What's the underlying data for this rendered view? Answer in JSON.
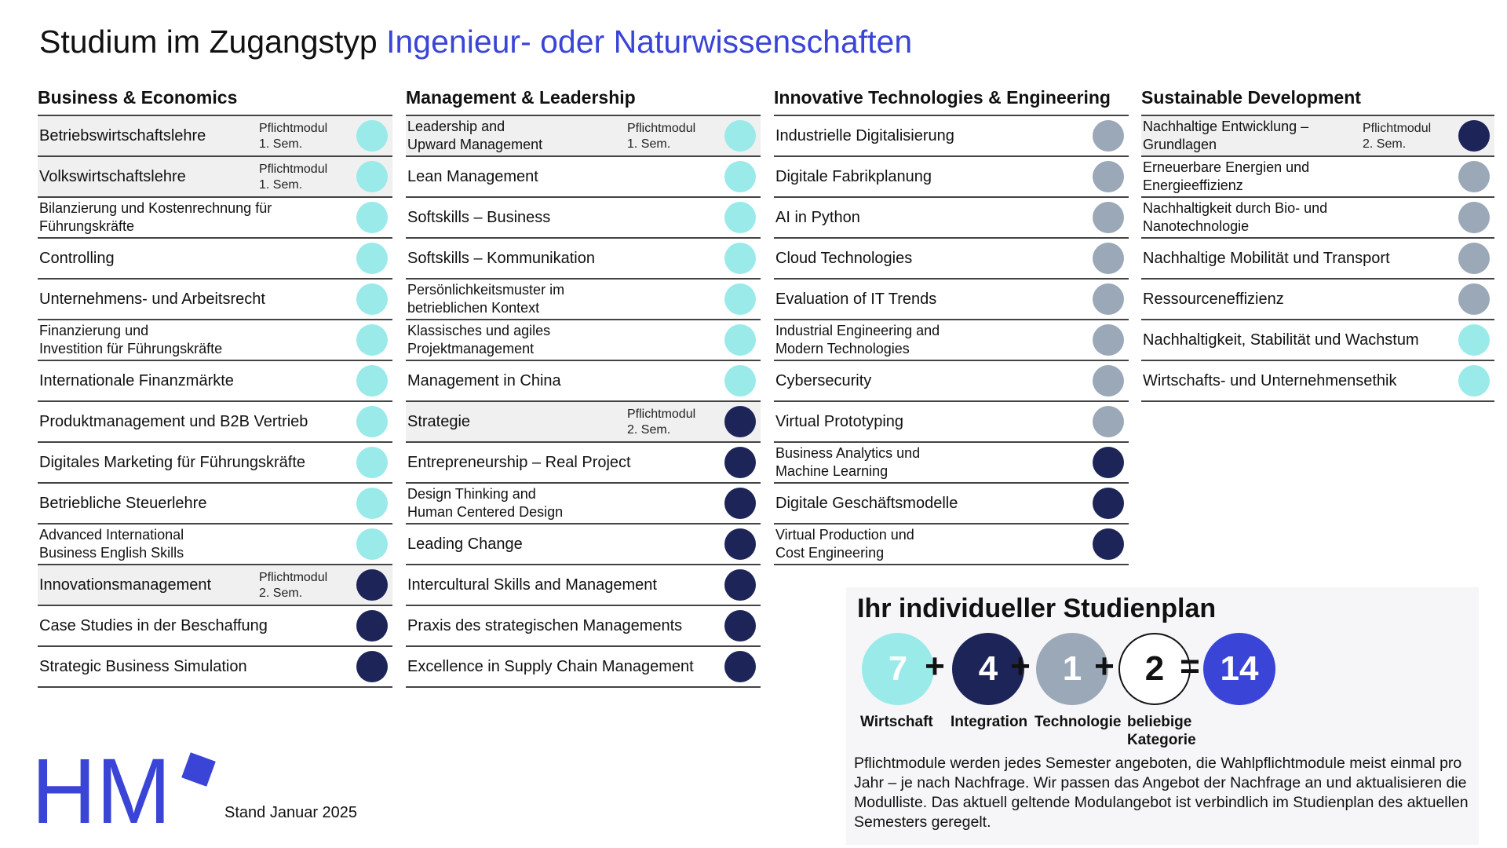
{
  "title": {
    "main": "Studium im Zugangstyp",
    "accent": "Ingenieur- oder Naturwissenschaften"
  },
  "colors": {
    "accent": "#3a44d6",
    "wirtschaft": "#9aeaea",
    "integration": "#1d2558",
    "technologie": "#9aa8b8",
    "required_row_bg": "#f0f0f0"
  },
  "columns": [
    {
      "heading": "Business & Economics",
      "rows": [
        {
          "name": "Betriebswirtschaftslehre",
          "required": "Pflichtmodul\n1. Sem.",
          "category": "wirtschaft"
        },
        {
          "name": "Volkswirtschaftslehre",
          "required": "Pflichtmodul\n1. Sem.",
          "category": "wirtschaft"
        },
        {
          "name": "Bilanzierung und Kostenrechnung für\nFührungskräfte",
          "required": "",
          "category": "wirtschaft"
        },
        {
          "name": "Controlling",
          "required": "",
          "category": "wirtschaft"
        },
        {
          "name": "Unternehmens- und Arbeitsrecht",
          "required": "",
          "category": "wirtschaft"
        },
        {
          "name": "Finanzierung und\nInvestition für Führungskräfte",
          "required": "",
          "category": "wirtschaft"
        },
        {
          "name": "Internationale Finanzmärkte",
          "required": "",
          "category": "wirtschaft"
        },
        {
          "name": "Produktmanagement und B2B Vertrieb",
          "required": "",
          "category": "wirtschaft"
        },
        {
          "name": "Digitales Marketing für Führungskräfte",
          "required": "",
          "category": "wirtschaft"
        },
        {
          "name": "Betriebliche Steuerlehre",
          "required": "",
          "category": "wirtschaft"
        },
        {
          "name": "Advanced International\nBusiness English Skills",
          "required": "",
          "category": "wirtschaft"
        },
        {
          "name": "Innovationsmanagement",
          "required": "Pflichtmodul\n2. Sem.",
          "category": "integration"
        },
        {
          "name": "Case Studies in der Beschaffung",
          "required": "",
          "category": "integration"
        },
        {
          "name": "Strategic Business Simulation",
          "required": "",
          "category": "integration"
        }
      ]
    },
    {
      "heading": "Management & Leadership",
      "rows": [
        {
          "name": "Leadership and\nUpward Management",
          "required": "Pflichtmodul\n1. Sem.",
          "category": "wirtschaft"
        },
        {
          "name": "Lean Management",
          "required": "",
          "category": "wirtschaft"
        },
        {
          "name": "Softskills – Business",
          "required": "",
          "category": "wirtschaft"
        },
        {
          "name": "Softskills – Kommunikation",
          "required": "",
          "category": "wirtschaft"
        },
        {
          "name": "Persönlichkeitsmuster im\nbetrieblichen Kontext",
          "required": "",
          "category": "wirtschaft"
        },
        {
          "name": "Klassisches und agiles\nProjektmanagement",
          "required": "",
          "category": "wirtschaft"
        },
        {
          "name": "Management in China",
          "required": "",
          "category": "wirtschaft"
        },
        {
          "name": "Strategie",
          "required": "Pflichtmodul\n2. Sem.",
          "category": "integration"
        },
        {
          "name": "Entrepreneurship – Real Project",
          "required": "",
          "category": "integration"
        },
        {
          "name": "Design Thinking and\nHuman Centered Design",
          "required": "",
          "category": "integration"
        },
        {
          "name": "Leading Change",
          "required": "",
          "category": "integration"
        },
        {
          "name": "Intercultural Skills and Management",
          "required": "",
          "category": "integration"
        },
        {
          "name": "Praxis des strategischen Managements",
          "required": "",
          "category": "integration"
        },
        {
          "name": "Excellence in Supply Chain Management",
          "required": "",
          "category": "integration"
        }
      ]
    },
    {
      "heading": "Innovative Technologies & Engineering",
      "rows": [
        {
          "name": "Industrielle Digitalisierung",
          "required": "",
          "category": "technologie"
        },
        {
          "name": "Digitale Fabrikplanung",
          "required": "",
          "category": "technologie"
        },
        {
          "name": "AI in Python",
          "required": "",
          "category": "technologie"
        },
        {
          "name": "Cloud Technologies",
          "required": "",
          "category": "technologie"
        },
        {
          "name": "Evaluation of IT Trends",
          "required": "",
          "category": "technologie"
        },
        {
          "name": "Industrial Engineering and\nModern Technologies",
          "required": "",
          "category": "technologie"
        },
        {
          "name": "Cybersecurity",
          "required": "",
          "category": "technologie"
        },
        {
          "name": "Virtual Prototyping",
          "required": "",
          "category": "technologie"
        },
        {
          "name": "Business Analytics und\nMachine Learning",
          "required": "",
          "category": "integration"
        },
        {
          "name": "Digitale Geschäftsmodelle",
          "required": "",
          "category": "integration"
        },
        {
          "name": "Virtual Production und\nCost Engineering",
          "required": "",
          "category": "integration"
        }
      ]
    },
    {
      "heading": "Sustainable Development",
      "rows": [
        {
          "name": "Nachhaltige Entwicklung –\nGrundlagen",
          "required": "Pflichtmodul\n2. Sem.",
          "category": "integration"
        },
        {
          "name": "Erneuerbare Energien und\nEnergieeffizienz",
          "required": "",
          "category": "technologie"
        },
        {
          "name": "Nachhaltigkeit durch Bio- und\nNanotechnologie",
          "required": "",
          "category": "technologie"
        },
        {
          "name": "Nachhaltige Mobilität und Transport",
          "required": "",
          "category": "technologie"
        },
        {
          "name": "Ressourceneffizienz",
          "required": "",
          "category": "technologie"
        },
        {
          "name": "Nachhaltigkeit, Stabilität und Wachstum",
          "required": "",
          "category": "wirtschaft"
        },
        {
          "name": "Wirtschafts- und Unternehmensethik",
          "required": "",
          "category": "wirtschaft"
        }
      ]
    }
  ],
  "plan": {
    "title": "Ihr individueller Studienplan",
    "items": [
      {
        "value": "7",
        "label": "Wirtschaft",
        "color": "#9aeaea"
      },
      {
        "value": "4",
        "label": "Integration",
        "color": "#1d2558"
      },
      {
        "value": "1",
        "label": "Technologie",
        "color": "#9aa8b8"
      },
      {
        "value": "2",
        "label": "beliebige\nKategorie",
        "color": "#ffffff"
      }
    ],
    "operators": [
      "+",
      "+",
      "+",
      "="
    ],
    "total": {
      "value": "14",
      "color": "#3a44d6"
    },
    "text": "Pflichtmodule werden jedes Semester angeboten, die Wahlpflichtmodule meist einmal pro Jahr – je nach Nachfrage. Wir passen das Angebot der Nachfrage an und aktualisieren die Modulliste. Das aktuell geltende Modulangebot ist verbindlich im Studienplan des aktuellen Semesters geregelt."
  },
  "logo": {
    "text": "HM",
    "color": "#3a44d6"
  },
  "stand": "Stand Januar 2025"
}
